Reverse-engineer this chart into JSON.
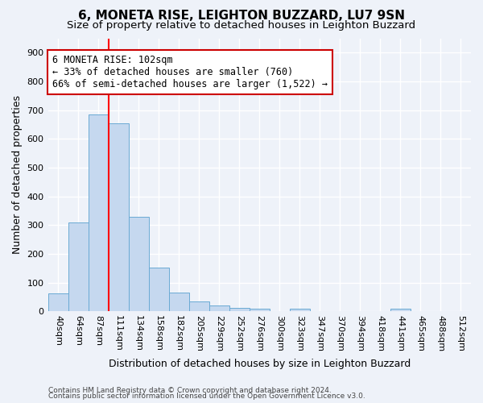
{
  "title": "6, MONETA RISE, LEIGHTON BUZZARD, LU7 9SN",
  "subtitle": "Size of property relative to detached houses in Leighton Buzzard",
  "xlabel": "Distribution of detached houses by size in Leighton Buzzard",
  "ylabel": "Number of detached properties",
  "bar_labels": [
    "40sqm",
    "64sqm",
    "87sqm",
    "111sqm",
    "134sqm",
    "158sqm",
    "182sqm",
    "205sqm",
    "229sqm",
    "252sqm",
    "276sqm",
    "300sqm",
    "323sqm",
    "347sqm",
    "370sqm",
    "394sqm",
    "418sqm",
    "441sqm",
    "465sqm",
    "488sqm",
    "512sqm"
  ],
  "bar_values": [
    62,
    310,
    685,
    655,
    330,
    152,
    65,
    35,
    20,
    12,
    10,
    0,
    10,
    0,
    0,
    0,
    0,
    8,
    0,
    0,
    0
  ],
  "bar_color": "#c5d8ef",
  "bar_edge_color": "#6aaad4",
  "vline_color": "red",
  "vline_x_index": 2.5,
  "annotation_text_line1": "6 MONETA RISE: 102sqm",
  "annotation_text_line2": "← 33% of detached houses are smaller (760)",
  "annotation_text_line3": "66% of semi-detached houses are larger (1,522) →",
  "annotation_box_color": "white",
  "annotation_box_edge_color": "#cc0000",
  "ylim": [
    0,
    950
  ],
  "yticks": [
    0,
    100,
    200,
    300,
    400,
    500,
    600,
    700,
    800,
    900
  ],
  "footer_line1": "Contains HM Land Registry data © Crown copyright and database right 2024.",
  "footer_line2": "Contains public sector information licensed under the Open Government Licence v3.0.",
  "bg_color": "#eef2f9",
  "plot_bg_color": "#eef2f9",
  "grid_color": "#ffffff",
  "title_fontsize": 11,
  "subtitle_fontsize": 9.5,
  "tick_fontsize": 8,
  "ylabel_fontsize": 9,
  "xlabel_fontsize": 9,
  "annotation_fontsize": 8.5,
  "footer_fontsize": 6.5
}
